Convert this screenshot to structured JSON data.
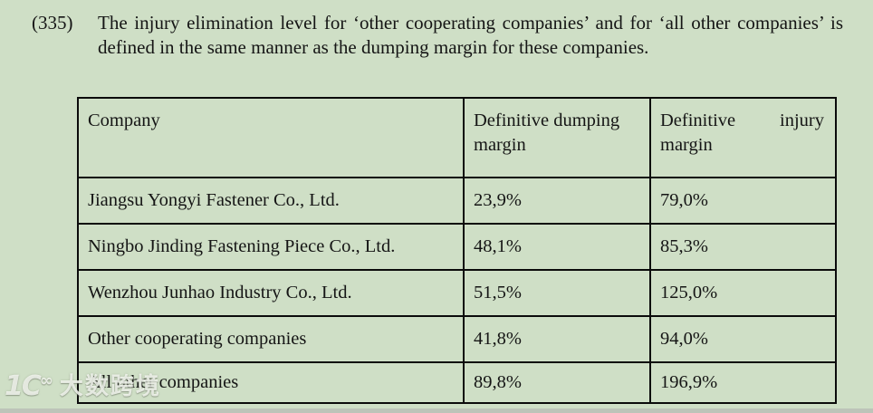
{
  "page": {
    "background": "#cfdfc6",
    "text_color": "#151515",
    "table_border_color": "#0b0b0b"
  },
  "paragraph": {
    "number": "(335)",
    "text": "The injury elimination level for ‘other cooperating companies’ and for ‘all other companies’ is defined in the same manner as the dumping margin for these companies."
  },
  "table": {
    "headers": [
      "Company",
      "Definitive dumping margin",
      "Definitive injury margin"
    ],
    "rows": [
      [
        "Jiangsu Yongyi Fastener Co., Ltd.",
        "23,9%",
        "79,0%"
      ],
      [
        "Ningbo Jinding Fastening Piece Co., Ltd.",
        "48,1%",
        "85,3%"
      ],
      [
        "Wenzhou Junhao Industry Co., Ltd.",
        "51,5%",
        "125,0%"
      ],
      [
        "Other cooperating companies",
        "41,8%",
        "94,0%"
      ],
      [
        "All other companies",
        "89,8%",
        "196,9%"
      ]
    ]
  },
  "watermark": {
    "logo_main": "1C",
    "logo_sup": "∞",
    "text": "大数跨境"
  }
}
